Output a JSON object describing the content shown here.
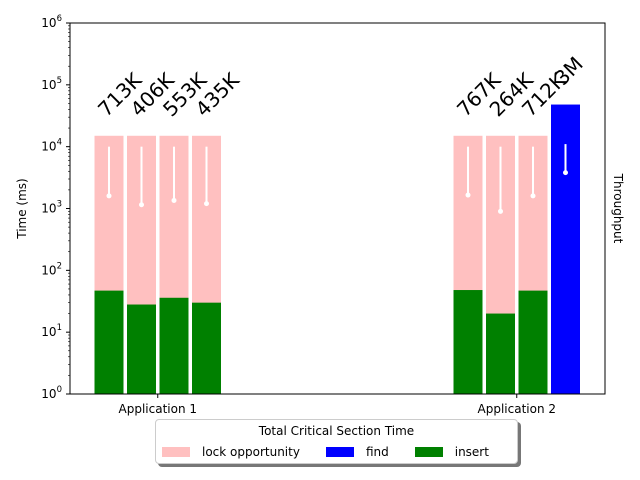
{
  "chart_data": {
    "type": "bar",
    "yscale": "log",
    "ylim": [
      1,
      1000000
    ],
    "ylabel": "Time (ms)",
    "y2label": "Throughput",
    "y_ticks": [
      {
        "value": 1,
        "base": "10",
        "exp": "0"
      },
      {
        "value": 10,
        "base": "10",
        "exp": "1"
      },
      {
        "value": 100,
        "base": "10",
        "exp": "2"
      },
      {
        "value": 1000,
        "base": "10",
        "exp": "3"
      },
      {
        "value": 10000,
        "base": "10",
        "exp": "4"
      },
      {
        "value": 100000,
        "base": "10",
        "exp": "5"
      },
      {
        "value": 1000000,
        "base": "10",
        "exp": "6"
      }
    ],
    "categories": [
      "Application 1",
      "Application 2"
    ],
    "colors": {
      "lock opportunity": "#ffc0c0",
      "find": "#0000ff",
      "insert": "#008000",
      "errorbar": "#ffffff"
    },
    "groups": [
      {
        "category": "Application 1",
        "bars": [
          {
            "insert": 47,
            "lock_opportunity_top": 15000,
            "find": null,
            "errorbar": {
              "center": 1600,
              "low": 1600,
              "high": 10000
            },
            "throughput": "713K"
          },
          {
            "insert": 28,
            "lock_opportunity_top": 15000,
            "find": null,
            "errorbar": {
              "center": 1150,
              "low": 1150,
              "high": 10000
            },
            "throughput": "406K"
          },
          {
            "insert": 36,
            "lock_opportunity_top": 15000,
            "find": null,
            "errorbar": {
              "center": 1350,
              "low": 1350,
              "high": 10000
            },
            "throughput": "553K"
          },
          {
            "insert": 30,
            "lock_opportunity_top": 15000,
            "find": null,
            "errorbar": {
              "center": 1200,
              "low": 1200,
              "high": 10000
            },
            "throughput": "435K"
          }
        ]
      },
      {
        "category": "Application 2",
        "bars": [
          {
            "insert": 48,
            "lock_opportunity_top": 15000,
            "find": null,
            "errorbar": {
              "center": 1650,
              "low": 1650,
              "high": 10000
            },
            "throughput": "767K"
          },
          {
            "insert": 20,
            "lock_opportunity_top": 15000,
            "find": null,
            "errorbar": {
              "center": 900,
              "low": 900,
              "high": 10000
            },
            "throughput": "264K"
          },
          {
            "insert": 47,
            "lock_opportunity_top": 15000,
            "find": null,
            "errorbar": {
              "center": 1600,
              "low": 1600,
              "high": 10000
            },
            "throughput": "712K"
          },
          {
            "insert": null,
            "lock_opportunity_top": null,
            "find": 48000,
            "errorbar": {
              "center": 3800,
              "low": 3800,
              "high": 11000
            },
            "throughput": "3M"
          }
        ]
      }
    ],
    "legend": {
      "title": "Total Critical Section Time",
      "placement": "bottom-center",
      "entries": [
        "lock opportunity",
        "find",
        "insert"
      ]
    }
  }
}
